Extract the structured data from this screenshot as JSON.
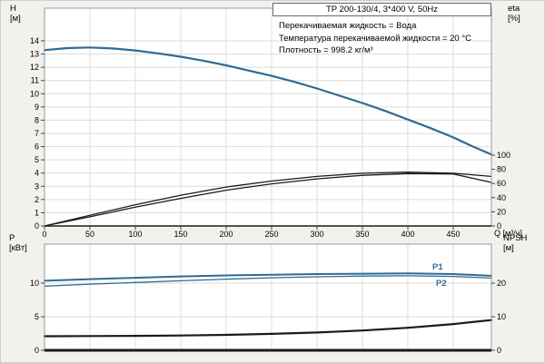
{
  "header": {
    "title": "TP 200-130/4, 3*400 V, 50Hz"
  },
  "annotations": [
    "Перекачиваемая жидкость = Вода",
    "Температура перекачиваемой жидкости = 20 °C",
    "Плотность = 998.2 кг/м³"
  ],
  "axis_labels": {
    "top_left_sym": "H",
    "top_left_unit": "[м]",
    "top_right_sym": "eta",
    "top_right_unit": "[%]",
    "x_axis": "Q [м³/ч]",
    "bottom_left_sym": "P",
    "bottom_left_unit": "[кВт]",
    "bottom_right_sym": "NPSH",
    "bottom_right_unit": "[м]"
  },
  "colors": {
    "curve_blue": "#2e6b96",
    "curve_black": "#1a1a1a",
    "grid": "#dcdcd8",
    "border": "#9a9a94"
  },
  "chart_data": [
    {
      "type": "line",
      "panel": "top",
      "title": "TP 200-130/4, 3*400 V, 50Hz",
      "xlabel": "Q [м³/ч]",
      "xlim": [
        0,
        492
      ],
      "x_ticks": [
        0,
        50,
        100,
        150,
        200,
        250,
        300,
        350,
        400,
        450
      ],
      "show_x_labels": true,
      "left_axis": {
        "label": "H [м]",
        "ticks": [
          0,
          1,
          2,
          3,
          4,
          5,
          6,
          7,
          8,
          9,
          10,
          11,
          12,
          13,
          14
        ],
        "lim": [
          0,
          16.47
        ]
      },
      "right_axis": {
        "label": "eta [%]",
        "ticks": [
          0,
          20,
          40,
          60,
          80,
          100
        ],
        "lim": [
          0,
          307.7
        ]
      },
      "series": [
        {
          "name": "H",
          "axis": "left",
          "color": "#2e6b96",
          "width": 2.2,
          "x": [
            0,
            25,
            50,
            75,
            100,
            125,
            150,
            175,
            200,
            225,
            250,
            275,
            300,
            325,
            350,
            375,
            400,
            425,
            450,
            470,
            492
          ],
          "y": [
            13.3,
            13.45,
            13.5,
            13.42,
            13.27,
            13.05,
            12.8,
            12.5,
            12.15,
            11.75,
            11.35,
            10.9,
            10.4,
            9.85,
            9.3,
            8.7,
            8.05,
            7.4,
            6.7,
            6.05,
            5.4
          ]
        },
        {
          "name": "eta-pump",
          "axis": "right",
          "color": "#1a1a1a",
          "width": 1.3,
          "x": [
            0,
            50,
            100,
            150,
            200,
            250,
            300,
            350,
            400,
            450,
            492
          ],
          "y": [
            0,
            15,
            30,
            43.5,
            55,
            63.5,
            70,
            74.5,
            76,
            74.5,
            70
          ]
        },
        {
          "name": "eta-pump-motor",
          "axis": "right",
          "color": "#1a1a1a",
          "width": 1.3,
          "x": [
            0,
            50,
            100,
            150,
            200,
            250,
            300,
            350,
            400,
            450,
            492
          ],
          "y": [
            0,
            13,
            26.5,
            39,
            50.5,
            59.5,
            66.5,
            71.5,
            74,
            73.5,
            61.5
          ]
        }
      ]
    },
    {
      "type": "line",
      "panel": "bottom",
      "xlim": [
        0,
        492
      ],
      "x_ticks": [
        0,
        50,
        100,
        150,
        200,
        250,
        300,
        350,
        400,
        450
      ],
      "show_x_labels": false,
      "left_axis": {
        "label": "P [кВт]",
        "ticks": [
          0,
          5,
          10
        ],
        "lim": [
          0,
          15.81
        ]
      },
      "right_axis": {
        "label": "NPSH [м]",
        "ticks": [
          0,
          10,
          20
        ],
        "lim": [
          0,
          31.62
        ]
      },
      "series": [
        {
          "name": "P1",
          "axis": "left",
          "color": "#2e6b96",
          "width": 2,
          "x": [
            0,
            50,
            100,
            150,
            200,
            250,
            300,
            350,
            400,
            450,
            492
          ],
          "y": [
            10.35,
            10.6,
            10.8,
            11.0,
            11.15,
            11.25,
            11.35,
            11.4,
            11.45,
            11.35,
            11.1
          ]
        },
        {
          "name": "P2",
          "axis": "left",
          "color": "#2e6b96",
          "width": 1.3,
          "x": [
            0,
            50,
            100,
            150,
            200,
            250,
            300,
            350,
            400,
            450,
            492
          ],
          "y": [
            9.55,
            9.85,
            10.1,
            10.35,
            10.6,
            10.8,
            10.95,
            11.05,
            11.1,
            11.0,
            10.75
          ]
        },
        {
          "name": "NPSH",
          "axis": "right",
          "color": "#1a1a1a",
          "width": 2.2,
          "x": [
            0,
            50,
            100,
            150,
            200,
            250,
            300,
            350,
            400,
            450,
            492
          ],
          "y": [
            4.2,
            4.25,
            4.3,
            4.4,
            4.6,
            4.9,
            5.3,
            5.9,
            6.7,
            7.8,
            9.0
          ]
        }
      ],
      "curve_labels": [
        {
          "text": "P1"
        },
        {
          "text": "P2"
        }
      ]
    }
  ]
}
